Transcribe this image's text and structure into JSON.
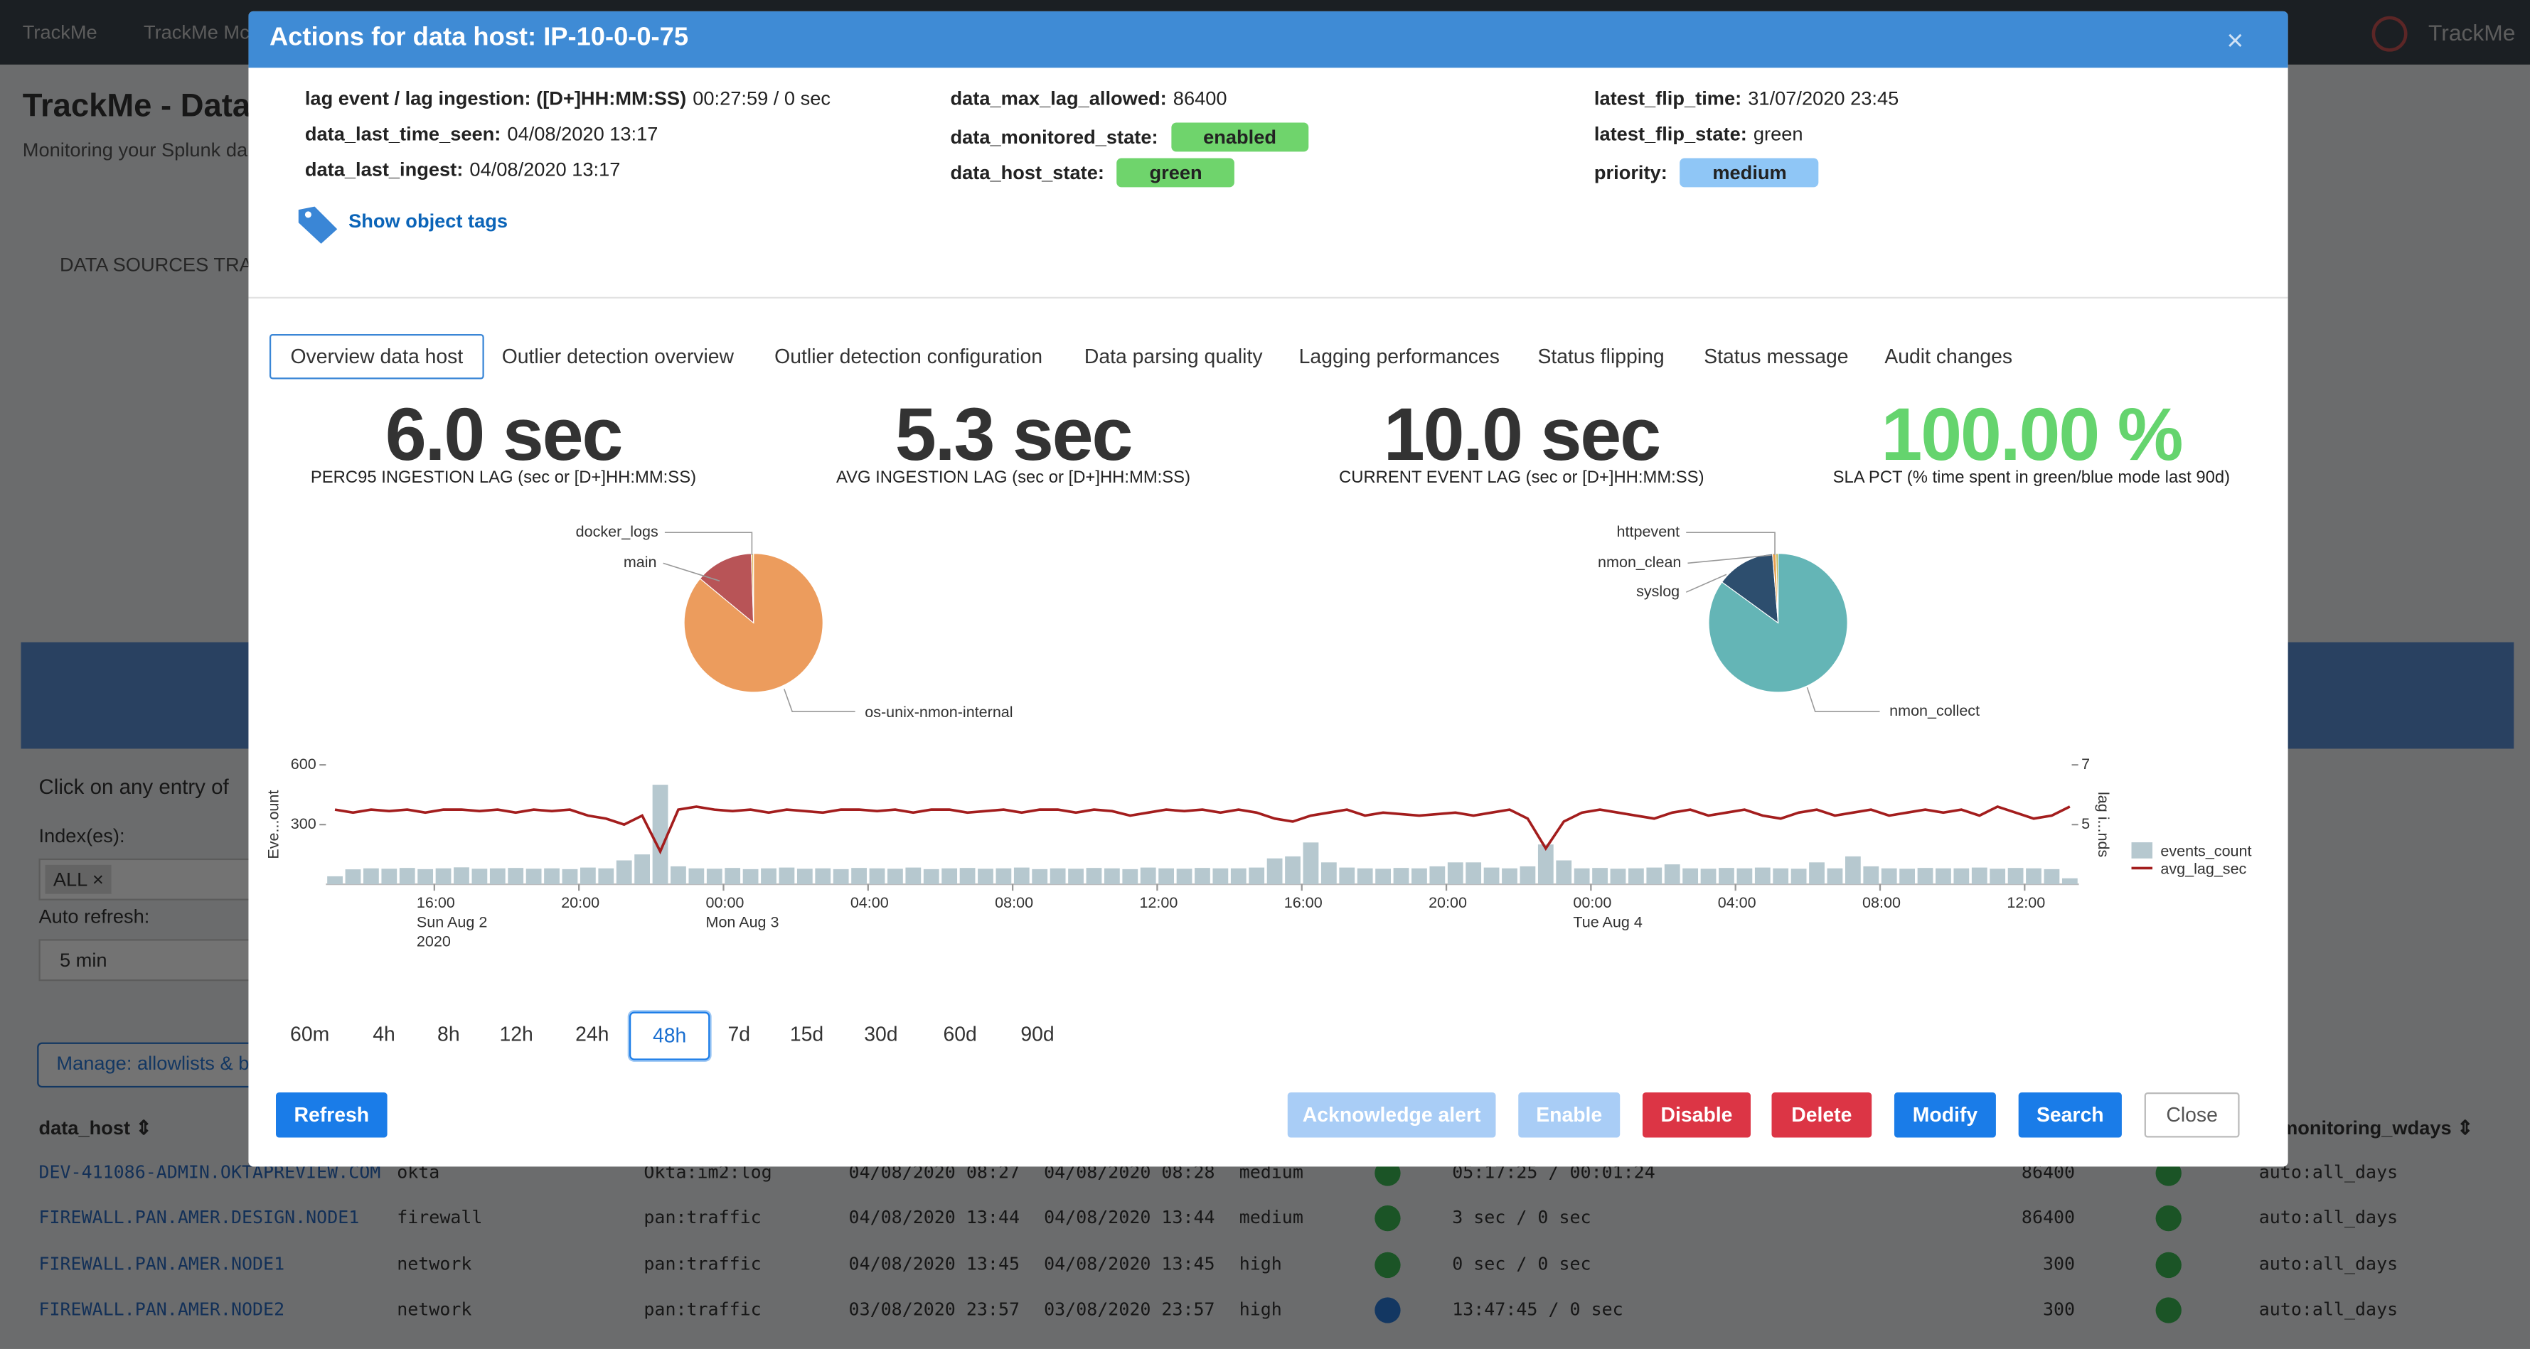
{
  "background": {
    "nav": [
      "TrackMe",
      "TrackMe Mc"
    ],
    "nav_right": "TrackMe",
    "page_title": "TrackMe - Data",
    "page_subtitle": "Monitoring your Splunk da",
    "section": "DATA SOURCES TRA",
    "click_hint": "Click on any entry of",
    "index_label": "Index(es):",
    "index_value": "ALL ×",
    "refresh_label": "Auto refresh:",
    "refresh_value": "5 min",
    "manage_button": "Manage: allowlists & b",
    "table_headers": [
      "data_host ⇕",
      "a_monitoring_wdays ⇕"
    ],
    "rows": [
      {
        "cells": [
          "DEV-411086-ADMIN.OKTAPREVIEW.COM",
          "okta",
          "Okta:im2:log",
          "04/08/2020 08:27",
          "04/08/2020 08:28",
          "medium",
          "05:17:25 / 00:01:24",
          "86400",
          "auto:all_days"
        ],
        "icons": [
          "ok",
          "ok"
        ]
      },
      {
        "cells": [
          "FIREWALL.PAN.AMER.DESIGN.NODE1",
          "firewall",
          "pan:traffic",
          "04/08/2020 13:44",
          "04/08/2020 13:44",
          "medium",
          "3 sec / 0 sec",
          "86400",
          "auto:all_days"
        ],
        "icons": [
          "ok",
          "ok"
        ]
      },
      {
        "cells": [
          "FIREWALL.PAN.AMER.NODE1",
          "network",
          "pan:traffic",
          "04/08/2020 13:45",
          "04/08/2020 13:45",
          "high",
          "0 sec / 0 sec",
          "300",
          "auto:all_days"
        ],
        "icons": [
          "ok",
          "ok"
        ]
      },
      {
        "cells": [
          "FIREWALL.PAN.AMER.NODE2",
          "network",
          "pan:traffic",
          "03/08/2020 23:57",
          "03/08/2020 23:57",
          "high",
          "13:47:45 / 0 sec",
          "300",
          "auto:all_days"
        ],
        "icons": [
          "error",
          "ok"
        ]
      }
    ]
  },
  "modal": {
    "title": "Actions for data host: IP-10-0-0-75",
    "close": "×",
    "info": [
      [
        {
          "label": "lag event / lag ingestion: ([D+]HH:MM:SS)",
          "value": "00:27:59 / 0 sec"
        },
        {
          "label": "data_last_time_seen:",
          "value": "04/08/2020 13:17"
        },
        {
          "label": "data_last_ingest:",
          "value": "04/08/2020 13:17"
        }
      ],
      [
        {
          "label": "data_max_lag_allowed:",
          "value": "86400"
        },
        {
          "label": "data_monitored_state:",
          "value": "enabled",
          "badge": "#6fd46c"
        },
        {
          "label": "data_host_state:",
          "value": "green",
          "badge": "#6fd46c"
        }
      ],
      [
        {
          "label": "latest_flip_time:",
          "value": "31/07/2020 23:45"
        },
        {
          "label": "latest_flip_state:",
          "value": "green"
        },
        {
          "label": "priority:",
          "value": "medium",
          "badge": "#8fc6f6"
        }
      ]
    ],
    "show_tags": "Show object tags",
    "tabs": [
      "Overview data host",
      "Outlier detection overview",
      "Outlier detection configuration",
      "Data parsing quality",
      "Lagging performances",
      "Status flipping",
      "Status message",
      "Audit changes"
    ],
    "selected_tab": 0,
    "kpis": [
      {
        "value": "6.0 sec",
        "label": "PERC95 INGESTION LAG (sec or [D+]HH:MM:SS)",
        "color": "#333333"
      },
      {
        "value": "5.3 sec",
        "label": "AVG INGESTION LAG (sec or [D+]HH:MM:SS)",
        "color": "#333333"
      },
      {
        "value": "10.0 sec",
        "label": "CURRENT EVENT LAG (sec or [D+]HH:MM:SS)",
        "color": "#333333"
      },
      {
        "value": "100.00 %",
        "label": "SLA PCT (% time spent in green/blue mode last 90d)",
        "color": "#65d46e"
      }
    ],
    "pies": [
      {
        "type": "pie",
        "slices": [
          {
            "name": "os-unix-nmon-internal",
            "value": 86,
            "color": "#ec9c5d"
          },
          {
            "name": "main",
            "value": 13.5,
            "color": "#b85457"
          },
          {
            "name": "docker_logs",
            "value": 0.5,
            "color": "#e0c070"
          }
        ]
      },
      {
        "type": "pie",
        "slices": [
          {
            "name": "nmon_collect",
            "value": 85,
            "color": "#64b5b6"
          },
          {
            "name": "syslog",
            "value": 13.7,
            "color": "#2d4e6e"
          },
          {
            "name": "nmon_clean",
            "value": 0.8,
            "color": "#e8a04d"
          },
          {
            "name": "httpevent",
            "value": 0.5,
            "color": "#b5b34d"
          }
        ]
      }
    ],
    "timeline": {
      "type": "bar-line",
      "ylabel": "Eve...ount",
      "y2label": "lag i...nds",
      "ylim": [
        0,
        600
      ],
      "yticks": [
        300,
        600
      ],
      "y2lim": [
        3,
        7
      ],
      "y2ticks": [
        5,
        7
      ],
      "xticks": [
        {
          "value": 6,
          "label": [
            "16:00",
            "Sun Aug 2",
            "2020"
          ]
        },
        {
          "value": 14,
          "label": [
            "20:00"
          ]
        },
        {
          "value": 22,
          "label": [
            "00:00",
            "Mon Aug 3"
          ]
        },
        {
          "value": 30,
          "label": [
            "04:00"
          ]
        },
        {
          "value": 38,
          "label": [
            "08:00"
          ]
        },
        {
          "value": 46,
          "label": [
            "12:00"
          ]
        },
        {
          "value": 54,
          "label": [
            "16:00"
          ]
        },
        {
          "value": 62,
          "label": [
            "20:00"
          ]
        },
        {
          "value": 70,
          "label": [
            "00:00",
            "Tue Aug 4"
          ]
        },
        {
          "value": 78,
          "label": [
            "04:00"
          ]
        },
        {
          "value": 86,
          "label": [
            "08:00"
          ]
        },
        {
          "value": 94,
          "label": [
            "12:00"
          ]
        }
      ],
      "series": [
        {
          "name": "events_count",
          "color": "#b6c8cf",
          "values": [
            40,
            75,
            80,
            78,
            82,
            76,
            80,
            85,
            78,
            80,
            82,
            78,
            80,
            76,
            84,
            80,
            120,
            150,
            500,
            90,
            80,
            78,
            82,
            76,
            80,
            84,
            78,
            80,
            76,
            82,
            80,
            78,
            84,
            76,
            80,
            82,
            78,
            80,
            84,
            76,
            80,
            78,
            82,
            80,
            76,
            84,
            80,
            78,
            82,
            80,
            80,
            84,
            130,
            140,
            210,
            110,
            84,
            80,
            78,
            82,
            80,
            90,
            110,
            110,
            84,
            80,
            90,
            200,
            120,
            80,
            82,
            78,
            80,
            84,
            100,
            80,
            78,
            82,
            80,
            84,
            80,
            78,
            110,
            80,
            140,
            90,
            80,
            78,
            82,
            80,
            80,
            84,
            78,
            82,
            80,
            76,
            30
          ]
        },
        {
          "name": "avg_lag_sec",
          "color": "#a31d1d",
          "axis": "y2",
          "values": [
            5.5,
            5.4,
            5.5,
            5.45,
            5.5,
            5.4,
            5.5,
            5.5,
            5.45,
            5.5,
            5.4,
            5.5,
            5.45,
            5.5,
            5.3,
            5.2,
            5.0,
            5.3,
            4.1,
            5.5,
            5.6,
            5.5,
            5.45,
            5.5,
            5.4,
            5.5,
            5.45,
            5.4,
            5.5,
            5.5,
            5.45,
            5.5,
            5.4,
            5.5,
            5.5,
            5.4,
            5.45,
            5.5,
            5.4,
            5.5,
            5.5,
            5.4,
            5.5,
            5.45,
            5.3,
            5.4,
            5.5,
            5.45,
            5.5,
            5.4,
            5.5,
            5.4,
            5.2,
            5.1,
            5.3,
            5.4,
            5.5,
            5.3,
            5.4,
            5.35,
            5.3,
            5.35,
            5.4,
            5.3,
            5.4,
            5.5,
            5.2,
            4.2,
            5.1,
            5.4,
            5.5,
            5.4,
            5.3,
            5.2,
            5.4,
            5.5,
            5.3,
            5.4,
            5.5,
            5.3,
            5.2,
            5.4,
            5.5,
            5.3,
            5.4,
            5.5,
            5.3,
            5.4,
            5.5,
            5.4,
            5.5,
            5.3,
            5.6,
            5.4,
            5.2,
            5.3,
            5.6
          ]
        }
      ]
    },
    "ranges": [
      "60m",
      "4h",
      "8h",
      "12h",
      "24h",
      "48h",
      "7d",
      "15d",
      "30d",
      "60d",
      "90d"
    ],
    "selected_range": 5,
    "buttons": [
      {
        "label": "Refresh",
        "bg": "#1a7ce8",
        "fg": "#ffffff"
      },
      {
        "label": "Acknowledge alert",
        "bg": "#a9cdf6",
        "fg": "#ffffff"
      },
      {
        "label": "Enable",
        "bg": "#a9cdf6",
        "fg": "#ffffff"
      },
      {
        "label": "Disable",
        "bg": "#dc3545",
        "fg": "#ffffff"
      },
      {
        "label": "Delete",
        "bg": "#dc3545",
        "fg": "#ffffff"
      },
      {
        "label": "Modify",
        "bg": "#1a7ce8",
        "fg": "#ffffff"
      },
      {
        "label": "Search",
        "bg": "#1a7ce8",
        "fg": "#ffffff"
      },
      {
        "label": "Close",
        "bg": "#ffffff",
        "fg": "#555555"
      }
    ]
  }
}
